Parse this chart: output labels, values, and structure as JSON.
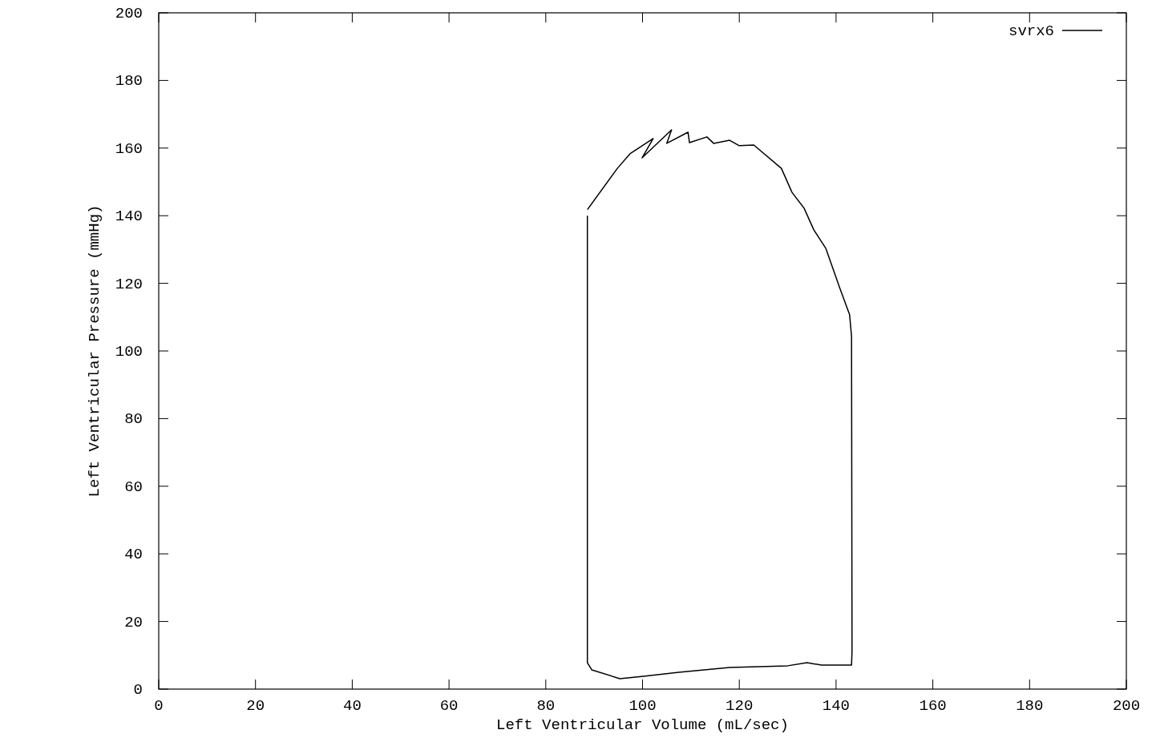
{
  "chart_data": {
    "type": "line",
    "xlabel": "Left Ventricular Volume (mL/sec)",
    "ylabel": "Left Ventricular Pressure (mmHg)",
    "xlim": [
      0,
      200
    ],
    "ylim": [
      0,
      200
    ],
    "xticks": [
      0,
      20,
      40,
      60,
      80,
      100,
      120,
      140,
      160,
      180,
      200
    ],
    "yticks": [
      0,
      20,
      40,
      60,
      80,
      100,
      120,
      140,
      160,
      180,
      200
    ],
    "legend": "top right",
    "grid": false,
    "marker": "none",
    "line_style": "solid",
    "series": [
      {
        "name": "svrx6",
        "color": "#000000",
        "x": [
          88.6,
          94.8,
          97.4,
          102.2,
          99.9,
          106,
          105,
          109.4,
          109.7,
          113.3,
          114.7,
          118,
          120,
          123,
          128.7,
          130.9,
          133.4,
          135.4,
          137.9,
          140.8,
          142.8,
          143.2,
          143.3,
          143.2,
          137,
          134,
          130,
          118,
          107.5,
          100.2,
          95.3,
          89.5,
          88.6,
          88.6
        ],
        "values": [
          141.8,
          154,
          158.3,
          162.8,
          157.1,
          165.4,
          161.4,
          164.7,
          161.6,
          163.3,
          161.4,
          162.3,
          160.7,
          160.9,
          154,
          146.9,
          142.2,
          135.8,
          130.3,
          118.5,
          110.7,
          104.3,
          11.4,
          7.1,
          7.1,
          7.8,
          6.9,
          6.4,
          5,
          3.8,
          3.1,
          5.7,
          7.8,
          140
        ]
      }
    ]
  }
}
